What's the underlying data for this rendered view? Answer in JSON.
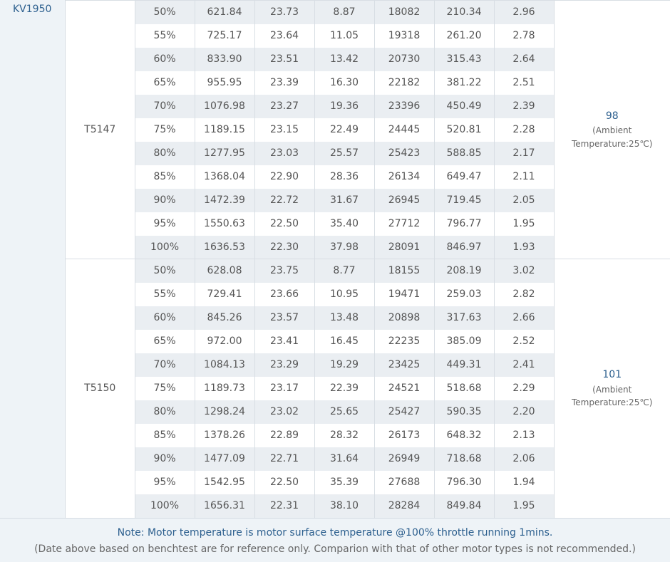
{
  "motor": "KV1950",
  "groups": [
    {
      "propeller": "T5147",
      "temperature": "98",
      "temperature_note_1": "(Ambient",
      "temperature_note_2": "Temperature:25℃)",
      "rows": [
        [
          "50%",
          "621.84",
          "23.73",
          "8.87",
          "18082",
          "210.34",
          "2.96"
        ],
        [
          "55%",
          "725.17",
          "23.64",
          "11.05",
          "19318",
          "261.20",
          "2.78"
        ],
        [
          "60%",
          "833.90",
          "23.51",
          "13.42",
          "20730",
          "315.43",
          "2.64"
        ],
        [
          "65%",
          "955.95",
          "23.39",
          "16.30",
          "22182",
          "381.22",
          "2.51"
        ],
        [
          "70%",
          "1076.98",
          "23.27",
          "19.36",
          "23396",
          "450.49",
          "2.39"
        ],
        [
          "75%",
          "1189.15",
          "23.15",
          "22.49",
          "24445",
          "520.81",
          "2.28"
        ],
        [
          "80%",
          "1277.95",
          "23.03",
          "25.57",
          "25423",
          "588.85",
          "2.17"
        ],
        [
          "85%",
          "1368.04",
          "22.90",
          "28.36",
          "26134",
          "649.47",
          "2.11"
        ],
        [
          "90%",
          "1472.39",
          "22.72",
          "31.67",
          "26945",
          "719.45",
          "2.05"
        ],
        [
          "95%",
          "1550.63",
          "22.50",
          "35.40",
          "27712",
          "796.77",
          "1.95"
        ],
        [
          "100%",
          "1636.53",
          "22.30",
          "37.98",
          "28091",
          "846.97",
          "1.93"
        ]
      ]
    },
    {
      "propeller": "T5150",
      "temperature": "101",
      "temperature_note_1": "(Ambient",
      "temperature_note_2": "Temperature:25℃)",
      "rows": [
        [
          "50%",
          "628.08",
          "23.75",
          "8.77",
          "18155",
          "208.19",
          "3.02"
        ],
        [
          "55%",
          "729.41",
          "23.66",
          "10.95",
          "19471",
          "259.03",
          "2.82"
        ],
        [
          "60%",
          "845.26",
          "23.57",
          "13.48",
          "20898",
          "317.63",
          "2.66"
        ],
        [
          "65%",
          "972.00",
          "23.41",
          "16.45",
          "22235",
          "385.09",
          "2.52"
        ],
        [
          "70%",
          "1084.13",
          "23.29",
          "19.29",
          "23425",
          "449.31",
          "2.41"
        ],
        [
          "75%",
          "1189.73",
          "23.17",
          "22.39",
          "24521",
          "518.68",
          "2.29"
        ],
        [
          "80%",
          "1298.24",
          "23.02",
          "25.65",
          "25427",
          "590.35",
          "2.20"
        ],
        [
          "85%",
          "1378.26",
          "22.89",
          "28.32",
          "26173",
          "648.32",
          "2.13"
        ],
        [
          "90%",
          "1477.09",
          "22.71",
          "31.64",
          "26949",
          "718.68",
          "2.06"
        ],
        [
          "95%",
          "1542.95",
          "22.50",
          "35.39",
          "27688",
          "796.30",
          "1.94"
        ],
        [
          "100%",
          "1656.31",
          "22.31",
          "38.10",
          "28284",
          "849.84",
          "1.95"
        ]
      ]
    }
  ],
  "footer": {
    "note": "Note: Motor temperature is motor surface temperature @100% throttle running 1mins.",
    "disclaimer": "(Date above based on benchtest are for reference only. Comparion with that of other motor types is not recommended.)"
  },
  "colors": {
    "accent": "#2c5f8e",
    "row_alt": "#eaeef2",
    "panel": "#eef3f7"
  }
}
